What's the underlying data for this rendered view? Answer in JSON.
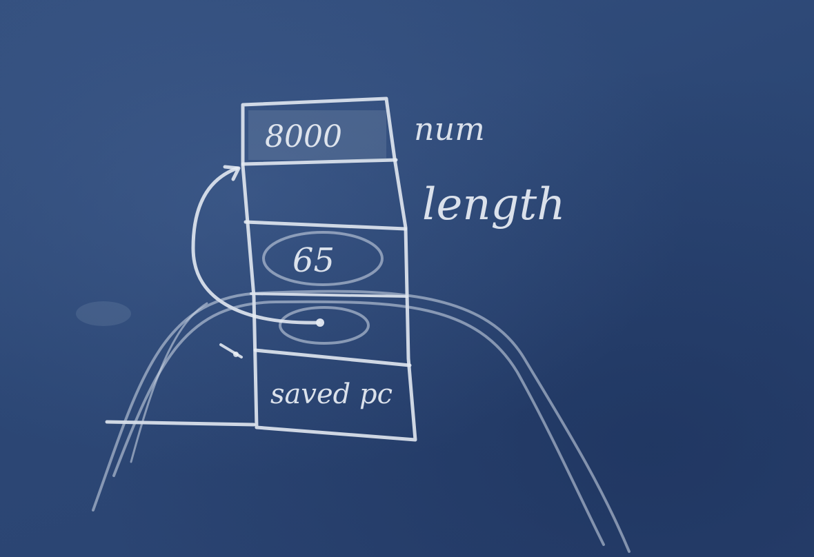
{
  "board": {
    "background": "#2f4a78",
    "chalk_color": "#e6ecf4"
  },
  "stack": {
    "cells": [
      {
        "label": "8000"
      },
      {
        "label": ""
      },
      {
        "label": "65"
      },
      {
        "label": ""
      },
      {
        "label": "saved pc"
      }
    ],
    "annotations": [
      {
        "label": "num"
      },
      {
        "label": "length"
      }
    ]
  }
}
